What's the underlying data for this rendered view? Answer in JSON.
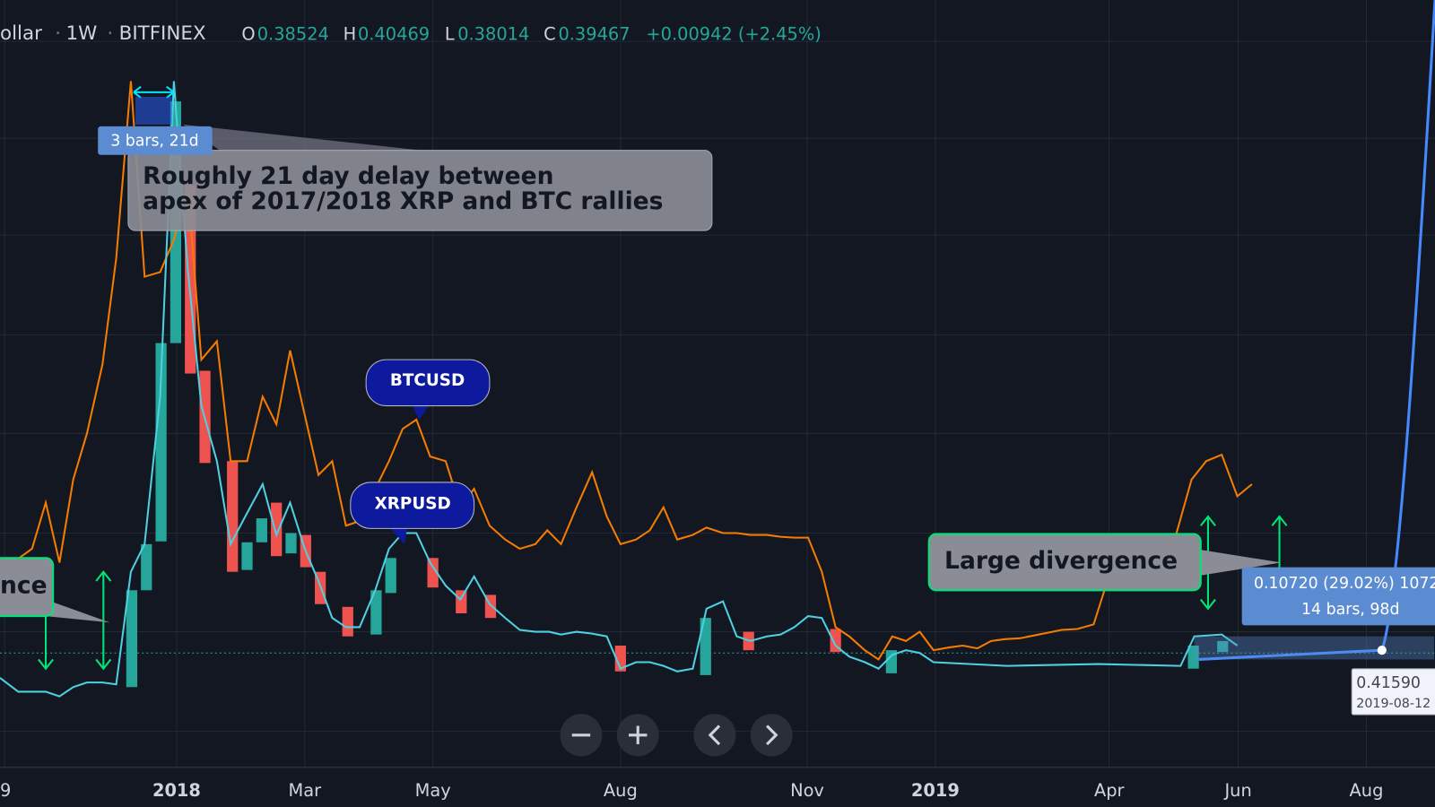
{
  "header": {
    "symbol": "ollar",
    "interval": "1W",
    "exchange": "BITFINEX",
    "open_label": "O",
    "open": "0.38524",
    "high_label": "H",
    "high": "0.40469",
    "low_label": "L",
    "low": "0.38014",
    "close_label": "C",
    "close": "0.39467",
    "change": "+0.00942 (+2.45%)"
  },
  "annotations": {
    "bars_top": "3 bars, 21d",
    "note_lines": [
      "Roughly 21 day delay between",
      "apex of 2017/2018 XRP and BTC rallies"
    ],
    "btc": "BTCUSD",
    "xrp": "XRPUSD",
    "divergence": "Large divergence",
    "left_note": "nce",
    "measure": "0.10720 (29.02%) 1072",
    "measure_bars": "14 bars, 98d",
    "price": "0.41590",
    "date": "2019-08-12"
  },
  "x_axis": [
    "9",
    "2018",
    "Mar",
    "May",
    "Aug",
    "Nov",
    "2019",
    "Apr",
    "Jun",
    "Aug"
  ]
}
